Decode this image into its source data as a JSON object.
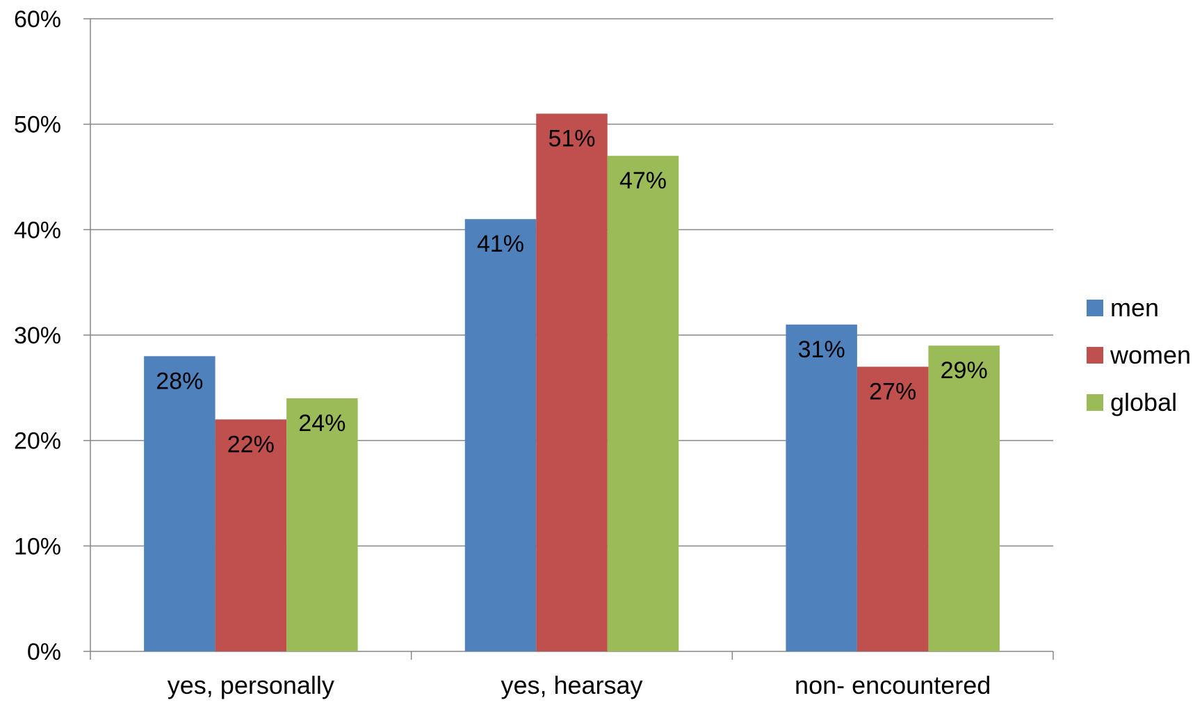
{
  "chart_data": {
    "type": "bar",
    "title": "",
    "xlabel": "",
    "ylabel": "",
    "categories": [
      "yes, personally",
      "yes, hearsay",
      "non- encountered"
    ],
    "series": [
      {
        "name": "men",
        "color": "#4F81BD",
        "values": [
          28,
          41,
          31
        ],
        "labels": [
          "28%",
          "41%",
          "31%"
        ]
      },
      {
        "name": "women",
        "color": "#C0504D",
        "values": [
          22,
          51,
          27
        ],
        "labels": [
          "22%",
          "51%",
          "27%"
        ]
      },
      {
        "name": "global",
        "color": "#9BBB59",
        "values": [
          24,
          47,
          29
        ],
        "labels": [
          "24%",
          "47%",
          "29%"
        ]
      }
    ],
    "ylim": [
      0,
      60
    ],
    "yticks": [
      0,
      10,
      20,
      30,
      40,
      50,
      60
    ],
    "ytick_labels": [
      "0%",
      "10%",
      "20%",
      "30%",
      "40%",
      "50%",
      "60%"
    ],
    "grid": true,
    "legend_position": "right"
  }
}
